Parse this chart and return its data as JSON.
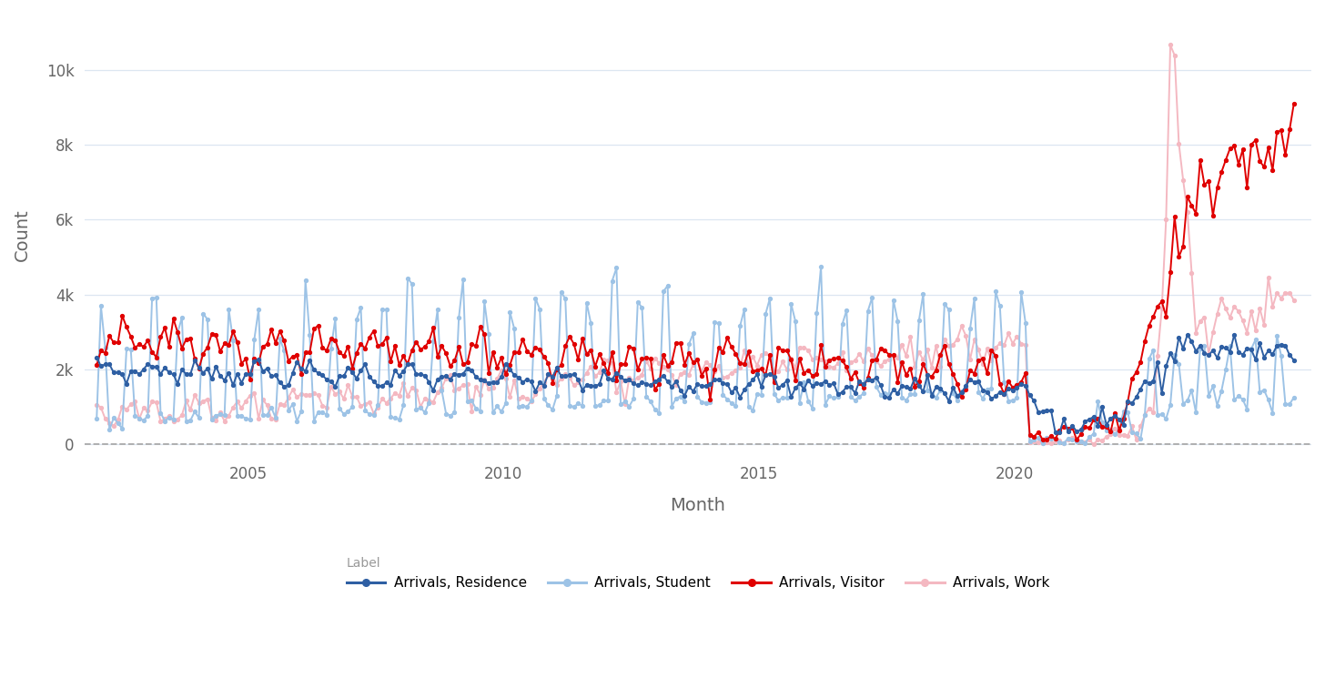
{
  "title": "",
  "xlabel": "Month",
  "ylabel": "Count",
  "legend_title": "Label",
  "background_color": "#ffffff",
  "plot_bg_color": "#ffffff",
  "grid_color": "#dce6f1",
  "dashed_zero_color": "#aaaaaa",
  "colors": {
    "residence": "#2e5fa3",
    "student": "#9dc3e6",
    "visitor": "#e00000",
    "work": "#f4b8c1"
  },
  "line_width": 1.4,
  "marker_size": 2.8,
  "yticks": [
    0,
    2000,
    4000,
    6000,
    8000,
    10000
  ],
  "ytick_labels": [
    "0",
    "2k",
    "4k",
    "6k",
    "8k",
    "10k"
  ],
  "xticks": [
    2005,
    2010,
    2015,
    2020
  ],
  "ylim": [
    -300,
    11500
  ],
  "xlim_start": 2001.8,
  "xlim_end": 2025.8,
  "legend_labels": [
    "Arrivals, Residence",
    "Arrivals, Student",
    "Arrivals, Visitor",
    "Arrivals, Work"
  ],
  "legend_colors": [
    "#2e5fa3",
    "#9dc3e6",
    "#e00000",
    "#f4b8c1"
  ],
  "figsize": [
    14.56,
    7.67
  ],
  "dpi": 100
}
